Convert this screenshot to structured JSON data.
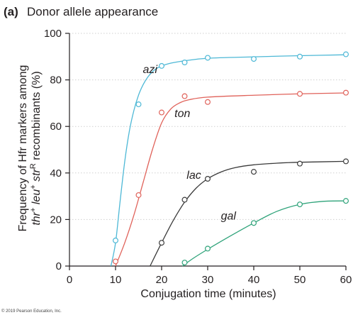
{
  "panel": {
    "letter": "(a)",
    "title": "Donor allele appearance"
  },
  "copyright": "© 2019 Pearson Education, Inc.",
  "colors": {
    "azi": "#4db8d6",
    "ton": "#e0625a",
    "lac": "#3a3a3a",
    "gal": "#2fa37a",
    "gridline": "#cfcfcf",
    "axis": "#231f20"
  },
  "chart_data": {
    "type": "line",
    "title": "Donor allele appearance",
    "xlabel": "Conjugation time (minutes)",
    "ylabel_line1": "Frequency of Hfr markers among",
    "ylabel_line2_parts": [
      "thr",
      "+",
      " leu",
      "+",
      " str",
      "R",
      " recombinants (%)"
    ],
    "xlim": [
      0,
      60
    ],
    "ylim": [
      0,
      100
    ],
    "xticks": [
      0,
      10,
      20,
      30,
      40,
      50,
      60
    ],
    "yticks": [
      0,
      20,
      40,
      60,
      80,
      100
    ],
    "grid": "horizontal-dotted",
    "series": [
      {
        "name": "azi",
        "color": "#4db8d6",
        "points": [
          [
            10,
            11
          ],
          [
            15,
            69.5
          ],
          [
            20,
            86
          ],
          [
            25,
            87.5
          ],
          [
            30,
            89.5
          ],
          [
            40,
            89
          ],
          [
            50,
            90
          ],
          [
            60,
            91
          ]
        ],
        "curve": [
          [
            9,
            0
          ],
          [
            10,
            10
          ],
          [
            11,
            28
          ],
          [
            12,
            45
          ],
          [
            13,
            58
          ],
          [
            14,
            67
          ],
          [
            15,
            73.5
          ],
          [
            16,
            78
          ],
          [
            17,
            81.2
          ],
          [
            18,
            83.5
          ],
          [
            19,
            85
          ],
          [
            20,
            86
          ],
          [
            22,
            87.2
          ],
          [
            25,
            88.2
          ],
          [
            30,
            89.3
          ],
          [
            40,
            89.9
          ],
          [
            50,
            90.4
          ],
          [
            60,
            90.8
          ]
        ]
      },
      {
        "name": "ton",
        "color": "#e0625a",
        "points": [
          [
            10,
            2
          ],
          [
            15,
            30.5
          ],
          [
            20,
            66
          ],
          [
            25,
            73
          ],
          [
            30,
            70.5
          ],
          [
            50,
            74
          ],
          [
            60,
            74.5
          ]
        ],
        "curve": [
          [
            10,
            0
          ],
          [
            12,
            10
          ],
          [
            14,
            22
          ],
          [
            16,
            36
          ],
          [
            18,
            50
          ],
          [
            20,
            61.5
          ],
          [
            22,
            67.5
          ],
          [
            24,
            70.2
          ],
          [
            26,
            71.5
          ],
          [
            30,
            72.6
          ],
          [
            40,
            73.4
          ],
          [
            50,
            74
          ],
          [
            60,
            74.4
          ]
        ]
      },
      {
        "name": "lac",
        "color": "#3a3a3a",
        "points": [
          [
            20,
            10
          ],
          [
            25,
            28.5
          ],
          [
            30,
            37.5
          ],
          [
            40,
            40.5
          ],
          [
            50,
            44
          ],
          [
            60,
            45
          ]
        ],
        "curve": [
          [
            17.5,
            0
          ],
          [
            20,
            10
          ],
          [
            22.5,
            19.5
          ],
          [
            25,
            27.5
          ],
          [
            27.5,
            33.5
          ],
          [
            30,
            37.5
          ],
          [
            33,
            40.5
          ],
          [
            36,
            42.3
          ],
          [
            40,
            43.5
          ],
          [
            45,
            44.2
          ],
          [
            50,
            44.6
          ],
          [
            60,
            45
          ]
        ]
      },
      {
        "name": "gal",
        "color": "#2fa37a",
        "points": [
          [
            25,
            1.5
          ],
          [
            30,
            7.5
          ],
          [
            40,
            18.5
          ],
          [
            50,
            26.5
          ],
          [
            60,
            28
          ]
        ],
        "curve": [
          [
            24.5,
            0
          ],
          [
            27,
            3.5
          ],
          [
            30,
            7.2
          ],
          [
            35,
            13
          ],
          [
            40,
            18.5
          ],
          [
            45,
            23.5
          ],
          [
            50,
            26.5
          ],
          [
            55,
            27.8
          ],
          [
            60,
            28
          ]
        ]
      }
    ],
    "series_label_positions": {
      "azi": [
        17.5,
        83
      ],
      "ton": [
        24.5,
        64
      ],
      "lac": [
        27,
        37.5
      ],
      "gal": [
        34.5,
        20
      ]
    }
  }
}
